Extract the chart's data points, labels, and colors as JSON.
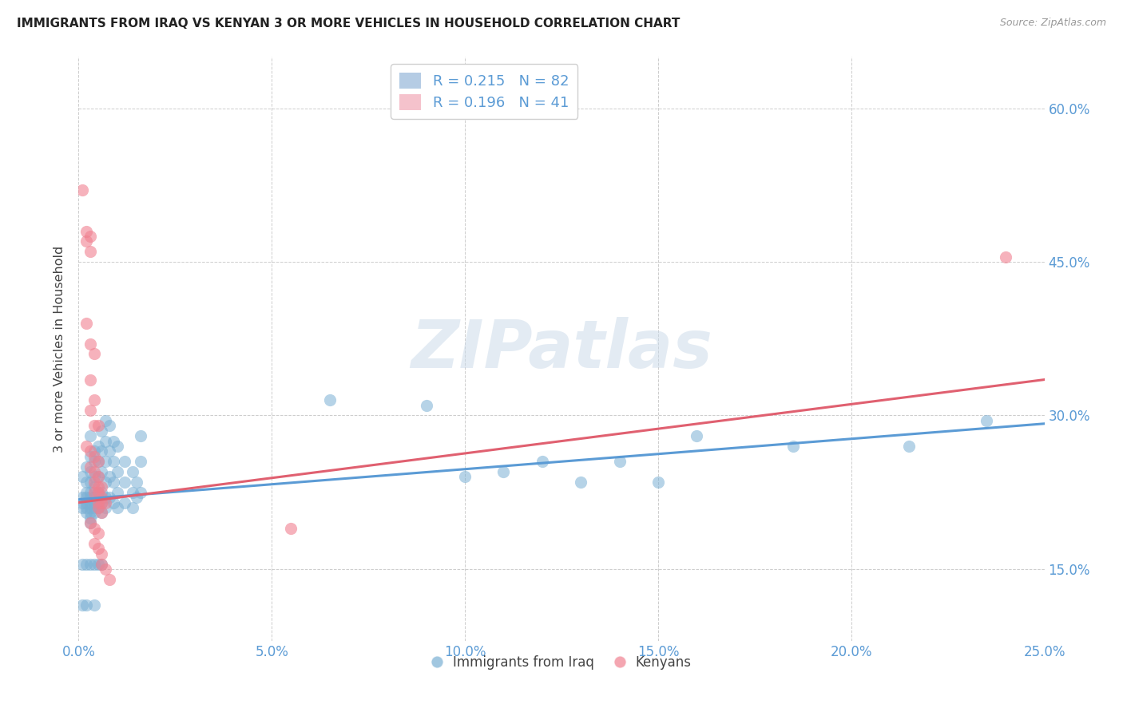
{
  "title": "IMMIGRANTS FROM IRAQ VS KENYAN 3 OR MORE VEHICLES IN HOUSEHOLD CORRELATION CHART",
  "source": "Source: ZipAtlas.com",
  "xlabel_ticks": [
    "0.0%",
    "5.0%",
    "10.0%",
    "15.0%",
    "20.0%",
    "25.0%"
  ],
  "ylabel_ticks": [
    "15.0%",
    "30.0%",
    "45.0%",
    "60.0%"
  ],
  "ylabel_label": "3 or more Vehicles in Household",
  "x_min": 0.0,
  "x_max": 0.25,
  "y_min": 0.08,
  "y_max": 0.65,
  "legend_bottom": [
    "Immigrants from Iraq",
    "Kenyans"
  ],
  "iraq_color": "#7ab0d4",
  "kenyan_color": "#f08090",
  "iraq_line_color": "#5b9bd5",
  "kenyan_line_color": "#e06070",
  "watermark_text": "ZIPatlas",
  "iraq_line": [
    [
      0.0,
      0.218
    ],
    [
      0.25,
      0.292
    ]
  ],
  "kenyan_line": [
    [
      0.0,
      0.215
    ],
    [
      0.25,
      0.335
    ]
  ],
  "iraq_scatter": [
    [
      0.001,
      0.24
    ],
    [
      0.001,
      0.22
    ],
    [
      0.001,
      0.215
    ],
    [
      0.001,
      0.21
    ],
    [
      0.002,
      0.25
    ],
    [
      0.002,
      0.235
    ],
    [
      0.002,
      0.225
    ],
    [
      0.002,
      0.22
    ],
    [
      0.002,
      0.215
    ],
    [
      0.002,
      0.21
    ],
    [
      0.002,
      0.205
    ],
    [
      0.003,
      0.28
    ],
    [
      0.003,
      0.26
    ],
    [
      0.003,
      0.245
    ],
    [
      0.003,
      0.235
    ],
    [
      0.003,
      0.225
    ],
    [
      0.003,
      0.22
    ],
    [
      0.003,
      0.215
    ],
    [
      0.003,
      0.21
    ],
    [
      0.003,
      0.205
    ],
    [
      0.003,
      0.2
    ],
    [
      0.003,
      0.195
    ],
    [
      0.004,
      0.265
    ],
    [
      0.004,
      0.255
    ],
    [
      0.004,
      0.24
    ],
    [
      0.004,
      0.23
    ],
    [
      0.004,
      0.22
    ],
    [
      0.004,
      0.215
    ],
    [
      0.004,
      0.21
    ],
    [
      0.004,
      0.205
    ],
    [
      0.005,
      0.27
    ],
    [
      0.005,
      0.255
    ],
    [
      0.005,
      0.24
    ],
    [
      0.005,
      0.225
    ],
    [
      0.005,
      0.215
    ],
    [
      0.005,
      0.21
    ],
    [
      0.006,
      0.285
    ],
    [
      0.006,
      0.265
    ],
    [
      0.006,
      0.245
    ],
    [
      0.006,
      0.225
    ],
    [
      0.006,
      0.215
    ],
    [
      0.006,
      0.205
    ],
    [
      0.007,
      0.295
    ],
    [
      0.007,
      0.275
    ],
    [
      0.007,
      0.255
    ],
    [
      0.007,
      0.235
    ],
    [
      0.007,
      0.22
    ],
    [
      0.007,
      0.21
    ],
    [
      0.008,
      0.29
    ],
    [
      0.008,
      0.265
    ],
    [
      0.008,
      0.24
    ],
    [
      0.008,
      0.22
    ],
    [
      0.009,
      0.275
    ],
    [
      0.009,
      0.255
    ],
    [
      0.009,
      0.235
    ],
    [
      0.009,
      0.215
    ],
    [
      0.01,
      0.27
    ],
    [
      0.01,
      0.245
    ],
    [
      0.01,
      0.225
    ],
    [
      0.01,
      0.21
    ],
    [
      0.012,
      0.255
    ],
    [
      0.012,
      0.235
    ],
    [
      0.012,
      0.215
    ],
    [
      0.014,
      0.245
    ],
    [
      0.014,
      0.225
    ],
    [
      0.014,
      0.21
    ],
    [
      0.015,
      0.235
    ],
    [
      0.015,
      0.22
    ],
    [
      0.016,
      0.28
    ],
    [
      0.016,
      0.255
    ],
    [
      0.016,
      0.225
    ],
    [
      0.001,
      0.155
    ],
    [
      0.002,
      0.155
    ],
    [
      0.003,
      0.155
    ],
    [
      0.004,
      0.155
    ],
    [
      0.005,
      0.155
    ],
    [
      0.006,
      0.155
    ],
    [
      0.001,
      0.115
    ],
    [
      0.002,
      0.115
    ],
    [
      0.004,
      0.115
    ],
    [
      0.065,
      0.315
    ],
    [
      0.09,
      0.31
    ],
    [
      0.1,
      0.24
    ],
    [
      0.11,
      0.245
    ],
    [
      0.12,
      0.255
    ],
    [
      0.13,
      0.235
    ],
    [
      0.14,
      0.255
    ],
    [
      0.15,
      0.235
    ],
    [
      0.16,
      0.28
    ],
    [
      0.185,
      0.27
    ],
    [
      0.215,
      0.27
    ],
    [
      0.235,
      0.295
    ]
  ],
  "kenyan_scatter": [
    [
      0.001,
      0.52
    ],
    [
      0.002,
      0.48
    ],
    [
      0.002,
      0.47
    ],
    [
      0.003,
      0.475
    ],
    [
      0.003,
      0.46
    ],
    [
      0.002,
      0.39
    ],
    [
      0.003,
      0.37
    ],
    [
      0.004,
      0.36
    ],
    [
      0.003,
      0.335
    ],
    [
      0.004,
      0.315
    ],
    [
      0.003,
      0.305
    ],
    [
      0.004,
      0.29
    ],
    [
      0.005,
      0.29
    ],
    [
      0.002,
      0.27
    ],
    [
      0.003,
      0.265
    ],
    [
      0.004,
      0.26
    ],
    [
      0.005,
      0.255
    ],
    [
      0.003,
      0.25
    ],
    [
      0.004,
      0.245
    ],
    [
      0.005,
      0.24
    ],
    [
      0.004,
      0.235
    ],
    [
      0.005,
      0.23
    ],
    [
      0.006,
      0.23
    ],
    [
      0.004,
      0.225
    ],
    [
      0.005,
      0.225
    ],
    [
      0.006,
      0.22
    ],
    [
      0.005,
      0.215
    ],
    [
      0.006,
      0.215
    ],
    [
      0.007,
      0.215
    ],
    [
      0.005,
      0.21
    ],
    [
      0.006,
      0.205
    ],
    [
      0.003,
      0.195
    ],
    [
      0.004,
      0.19
    ],
    [
      0.005,
      0.185
    ],
    [
      0.004,
      0.175
    ],
    [
      0.005,
      0.17
    ],
    [
      0.006,
      0.165
    ],
    [
      0.006,
      0.155
    ],
    [
      0.007,
      0.15
    ],
    [
      0.008,
      0.14
    ],
    [
      0.055,
      0.19
    ],
    [
      0.24,
      0.455
    ]
  ]
}
